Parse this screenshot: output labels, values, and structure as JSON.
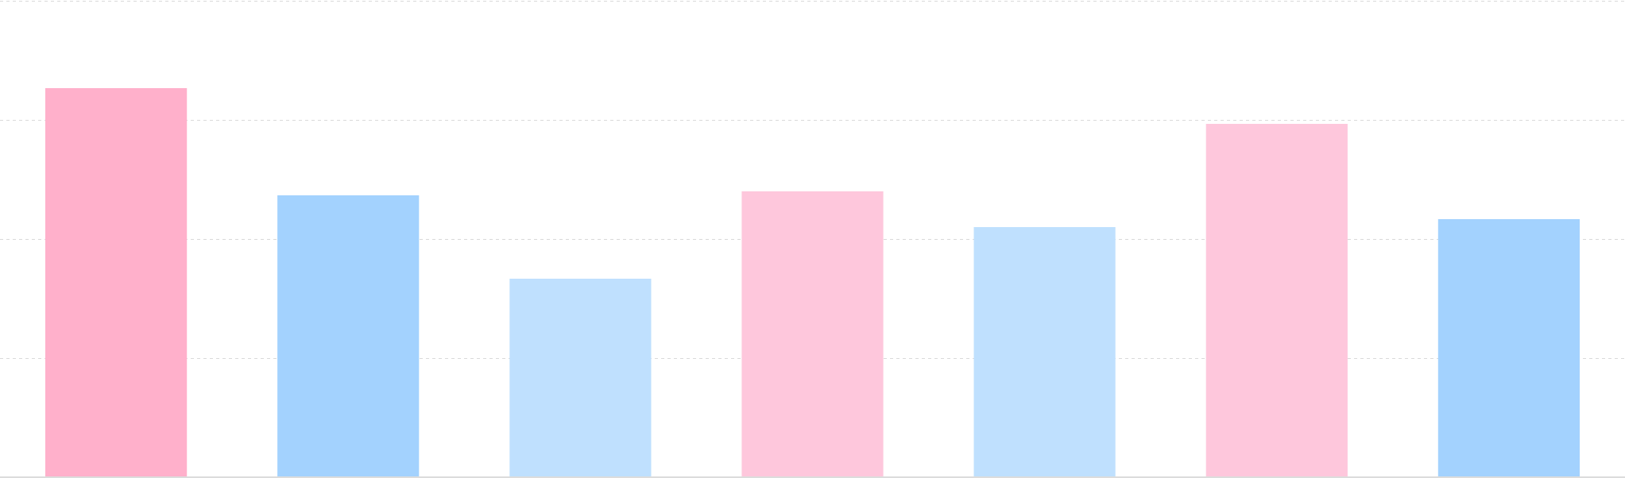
{
  "chart_data": {
    "type": "bar",
    "categories": [
      "",
      "",
      "",
      "",
      "",
      "",
      ""
    ],
    "values": [
      98,
      71,
      50,
      72,
      63,
      89,
      65
    ],
    "ylim": [
      0,
      120
    ],
    "grid": true,
    "legend": "none",
    "title": "",
    "xlabel": "",
    "ylabel": "",
    "bar_colors": [
      "#ffb0cb",
      "#a3d2fe",
      "#bfe0fe",
      "#fec7dc",
      "#bfe0fe",
      "#fec7dc",
      "#a3d2fe"
    ]
  },
  "colors": {
    "gridline": "#d9d9d9",
    "baseline": "#dcdcdc",
    "background": "#ffffff"
  }
}
